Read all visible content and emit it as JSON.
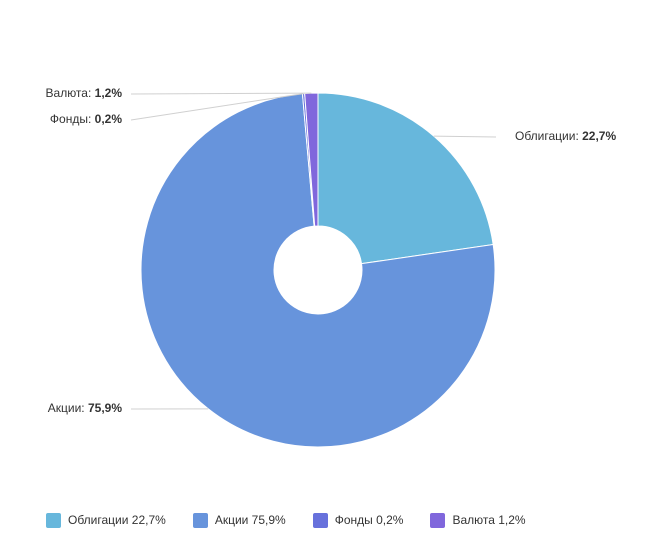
{
  "chart_data": {
    "type": "pie",
    "donut": true,
    "title": "",
    "slices": [
      {
        "name": "Облигации",
        "value": 22.7,
        "value_label": "22,7%",
        "color": "#67b7dc"
      },
      {
        "name": "Акции",
        "value": 75.9,
        "value_label": "75,9%",
        "color": "#6794dc"
      },
      {
        "name": "Фонды",
        "value": 0.2,
        "value_label": "0,2%",
        "color": "#6771dc"
      },
      {
        "name": "Валюта",
        "value": 1.2,
        "value_label": "1,2%",
        "color": "#8067dc"
      }
    ],
    "legend": {
      "placement": "bottom",
      "entries": [
        "Облигации 22,7%",
        "Акции 75,9%",
        "Фонды 0,2%",
        "Валюта 1,2%"
      ]
    }
  }
}
